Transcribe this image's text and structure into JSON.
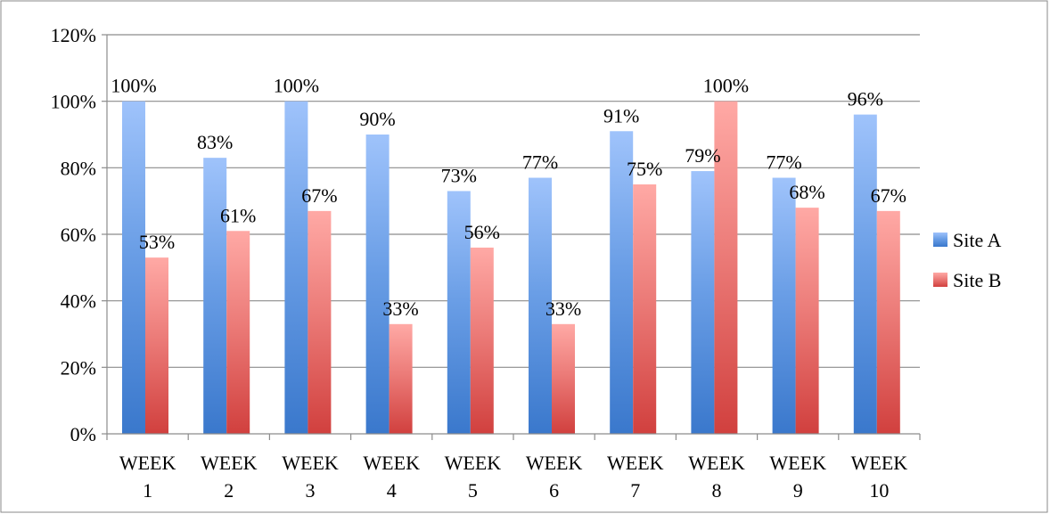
{
  "chart_data": {
    "type": "bar",
    "title": "",
    "xlabel": "",
    "ylabel": "",
    "categories": [
      [
        "WEEK",
        "1"
      ],
      [
        "WEEK",
        "2"
      ],
      [
        "WEEK",
        "3"
      ],
      [
        "WEEK",
        "4"
      ],
      [
        "WEEK",
        "5"
      ],
      [
        "WEEK",
        "6"
      ],
      [
        "WEEK",
        "7"
      ],
      [
        "WEEK",
        "8"
      ],
      [
        "WEEK",
        "9"
      ],
      [
        "WEEK",
        "10"
      ]
    ],
    "ylim": [
      0,
      120
    ],
    "y_ticks": [
      0,
      20,
      40,
      60,
      80,
      100,
      120
    ],
    "y_tick_labels": [
      "0%",
      "20%",
      "40%",
      "60%",
      "80%",
      "100%",
      "120%"
    ],
    "grid": true,
    "legend_position": "right",
    "series": [
      {
        "name": "Site A",
        "color": "#4a7fcf",
        "values": [
          100,
          83,
          100,
          90,
          73,
          77,
          91,
          79,
          77,
          96
        ],
        "labels": [
          "100%",
          "83%",
          "100%",
          "90%",
          "73%",
          "77%",
          "91%",
          "79%",
          "77%",
          "96%"
        ]
      },
      {
        "name": "Site B",
        "color": "#d9514e",
        "values": [
          53,
          61,
          67,
          33,
          56,
          33,
          75,
          100,
          68,
          67
        ],
        "labels": [
          "53%",
          "61%",
          "67%",
          "33%",
          "56%",
          "33%",
          "75%",
          "100%",
          "68%",
          "67%"
        ]
      }
    ]
  }
}
